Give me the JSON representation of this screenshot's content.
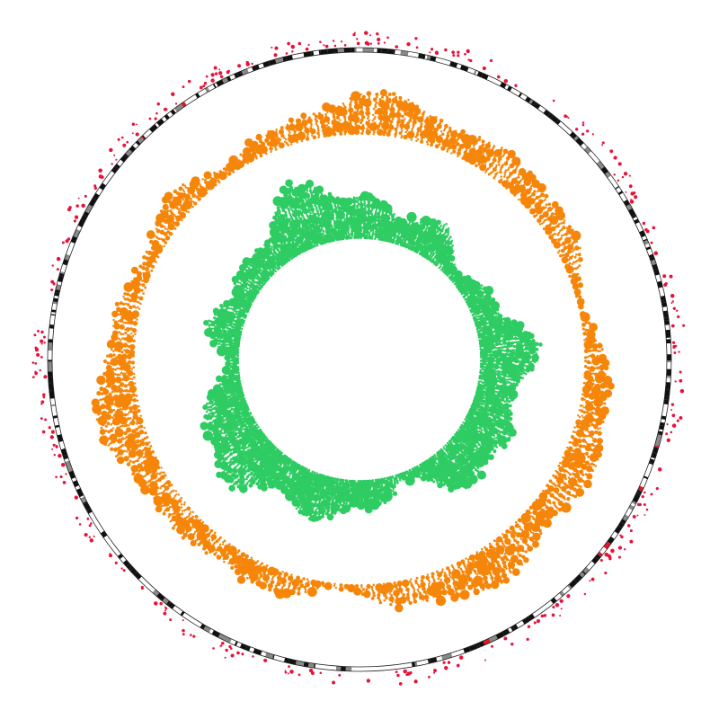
{
  "figure": {
    "kind": "circos-style circular genome plot",
    "text": ""
  },
  "colors": {
    "background": "#ffffff",
    "ideogram_dark": "#111111",
    "ideogram_light": "#ffffff",
    "ideogram_outline": "#222222",
    "ideogram_centromere": "#e0182b",
    "outer_points": "#e8123a",
    "middle_track": "#f5860a",
    "inner_track": "#2ecc63"
  },
  "tracks": [
    {
      "name": "ideogram",
      "kind": "chromosome bands"
    },
    {
      "name": "outer-points",
      "kind": "scatter outside ideogram"
    },
    {
      "name": "middle-track",
      "kind": "stacked circles (orange)"
    },
    {
      "name": "inner-track",
      "kind": "stacked circles (green)"
    }
  ]
}
